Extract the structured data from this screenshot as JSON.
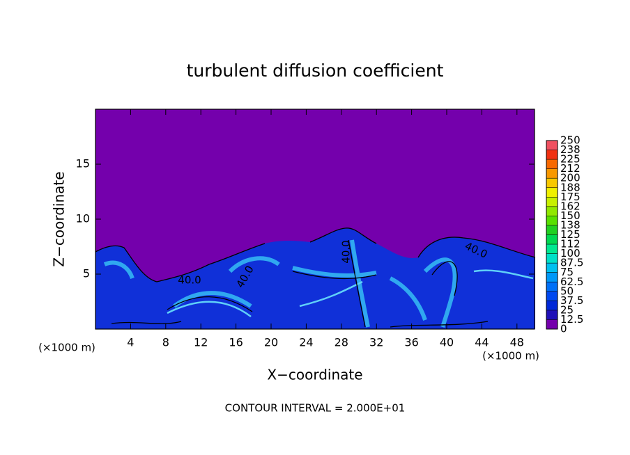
{
  "chart_data": {
    "type": "contour",
    "title": "turbulent diffusion coefficient",
    "x_label": "X−coordinate",
    "y_label": "Z−coordinate",
    "x_unit": "(×1000 m)",
    "y_unit": "(×1000 m)",
    "annotation": "CONTOUR INTERVAL = 2.000E+01",
    "contour_labels": [
      "40.0",
      "40.0",
      "40.0",
      "40.0"
    ],
    "xlim": [
      0,
      50
    ],
    "xticks": [
      4,
      8,
      12,
      16,
      20,
      24,
      28,
      32,
      36,
      40,
      44,
      48
    ],
    "ylim": [
      0,
      20
    ],
    "yticks": [
      5,
      10,
      15
    ],
    "background_color": "#7400ac",
    "colorbar": {
      "levels": [
        0,
        12.5,
        25,
        37.5,
        50,
        62.5,
        75,
        87.5,
        100,
        {
          "value": 112.5,
          "label": "112"
        },
        125,
        {
          "value": 137.5,
          "label": "138"
        },
        150,
        {
          "value": 162.5,
          "label": "162"
        },
        175,
        {
          "value": 187.5,
          "label": "188"
        },
        200,
        {
          "value": 212.5,
          "label": "212"
        },
        225,
        {
          "value": 237.5,
          "label": "238"
        },
        250
      ],
      "colors": [
        "#7400ac",
        "#2010b8",
        "#0028d8",
        "#0048f0",
        "#0070f8",
        "#0098f8",
        "#00c0f0",
        "#00e0c8",
        "#00e890",
        "#00d850",
        "#20d020",
        "#58e000",
        "#90e800",
        "#c8f000",
        "#f0f000",
        "#f8c800",
        "#f89800",
        "#f86800",
        "#f03010",
        "#f05060",
        "#f08888"
      ]
    }
  }
}
